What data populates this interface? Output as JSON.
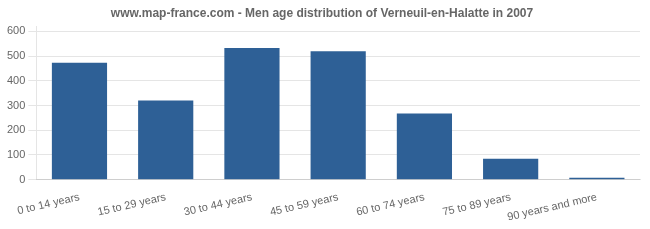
{
  "chart_data": {
    "type": "bar",
    "title": "www.map-france.com - Men age distribution of Verneuil-en-Halatte in 2007",
    "categories": [
      "0 to 14 years",
      "15 to 29 years",
      "30 to 44 years",
      "45 to 59 years",
      "60 to 74 years",
      "75 to 89 years",
      "90 years and more"
    ],
    "values": [
      473,
      320,
      533,
      519,
      268,
      84,
      8
    ],
    "color": "#2e6096",
    "ylim": [
      0,
      620
    ],
    "yticks": [
      0,
      100,
      200,
      300,
      400,
      500,
      600
    ],
    "grid": true
  }
}
